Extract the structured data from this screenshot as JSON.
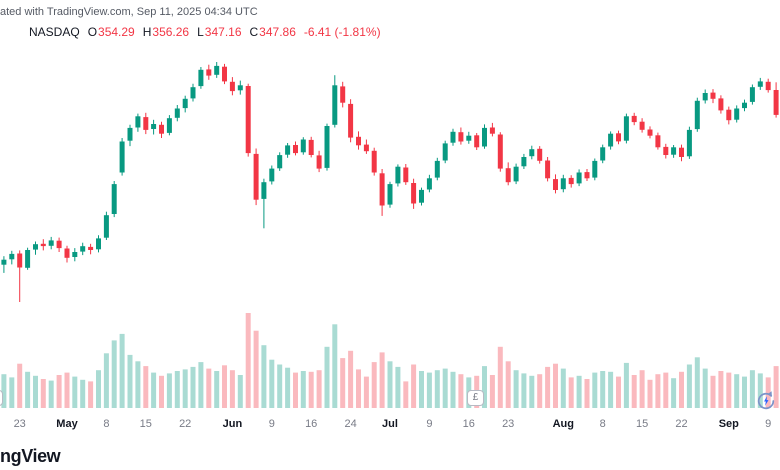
{
  "attribution": "ated with TradingView.com, Sep 11, 2025 04:34 UTC",
  "legend": {
    "symbol": "NASDAQ",
    "open_label": "O",
    "open": "354.29",
    "high_label": "H",
    "high": "356.26",
    "low_label": "L",
    "low": "347.16",
    "close_label": "C",
    "close": "347.86",
    "change": "-6.41 (-1.81%)"
  },
  "logo_text": "ngView",
  "colors": {
    "up": "#089981",
    "down": "#f23645",
    "up_volume": "#08998159",
    "down_volume": "#f2364559",
    "text_dark": "#131722",
    "text_muted": "#787b86",
    "value_down": "#f23645"
  },
  "event_badges": [
    {
      "label": "£",
      "index": 61
    },
    {
      "label": "",
      "index": 0
    }
  ],
  "chart_data": {
    "type": "candlestick",
    "symbol": "NASDAQ",
    "interval": "1D",
    "last_ohlc": {
      "open": 354.29,
      "high": 356.26,
      "low": 347.16,
      "close": 347.86,
      "change": -6.41,
      "change_pct": -1.81
    },
    "grid": "off",
    "legend_position": "top-left",
    "price_range_estimate": [
      299,
      362
    ],
    "x_axis_ticks": [
      {
        "label": "23",
        "index": 2,
        "month": false
      },
      {
        "label": "May",
        "index": 8,
        "month": true
      },
      {
        "label": "8",
        "index": 13,
        "month": false
      },
      {
        "label": "15",
        "index": 18,
        "month": false
      },
      {
        "label": "22",
        "index": 23,
        "month": false
      },
      {
        "label": "Jun",
        "index": 29,
        "month": true
      },
      {
        "label": "9",
        "index": 34,
        "month": false
      },
      {
        "label": "16",
        "index": 39,
        "month": false
      },
      {
        "label": "24",
        "index": 44,
        "month": false
      },
      {
        "label": "Jul",
        "index": 49,
        "month": true
      },
      {
        "label": "9",
        "index": 54,
        "month": false
      },
      {
        "label": "16",
        "index": 59,
        "month": false
      },
      {
        "label": "23",
        "index": 64,
        "month": false
      },
      {
        "label": "Aug",
        "index": 71,
        "month": true
      },
      {
        "label": "8",
        "index": 76,
        "month": false
      },
      {
        "label": "15",
        "index": 81,
        "month": false
      },
      {
        "label": "22",
        "index": 86,
        "month": false
      },
      {
        "label": "Sep",
        "index": 92,
        "month": true
      },
      {
        "label": "9",
        "index": 97,
        "month": false
      }
    ],
    "candle_fields": [
      "date",
      "open",
      "high",
      "low",
      "close",
      "volume"
    ],
    "candles": [
      [
        "2025-04-21",
        309.2,
        311.4,
        307.1,
        310.5,
        42
      ],
      [
        "2025-04-22",
        310.6,
        312.8,
        309.3,
        312.0,
        38
      ],
      [
        "2025-04-23",
        312.1,
        312.9,
        299.6,
        308.5,
        55
      ],
      [
        "2025-04-24",
        308.4,
        313.6,
        307.9,
        313.0,
        45
      ],
      [
        "2025-04-25",
        313.1,
        315.2,
        311.8,
        314.5,
        40
      ],
      [
        "2025-04-28",
        314.6,
        315.8,
        312.9,
        314.0,
        36
      ],
      [
        "2025-04-29",
        314.1,
        316.4,
        313.2,
        315.5,
        34
      ],
      [
        "2025-04-30",
        315.4,
        316.2,
        312.5,
        313.5,
        41
      ],
      [
        "2025-05-01",
        313.4,
        314.1,
        309.8,
        311.0,
        44
      ],
      [
        "2025-05-02",
        311.2,
        313.5,
        310.1,
        312.5,
        39
      ],
      [
        "2025-05-05",
        312.6,
        314.9,
        311.7,
        314.0,
        35
      ],
      [
        "2025-05-06",
        313.8,
        314.6,
        311.9,
        313.0,
        33
      ],
      [
        "2025-05-07",
        313.2,
        316.8,
        312.4,
        316.0,
        47
      ],
      [
        "2025-05-08",
        316.2,
        322.9,
        315.6,
        322.0,
        68
      ],
      [
        "2025-05-09",
        322.3,
        330.8,
        321.5,
        330.0,
        84
      ],
      [
        "2025-05-12",
        333.0,
        341.9,
        332.2,
        341.0,
        92
      ],
      [
        "2025-05-13",
        341.2,
        345.3,
        339.8,
        344.5,
        66
      ],
      [
        "2025-05-14",
        344.6,
        348.2,
        343.5,
        347.5,
        58
      ],
      [
        "2025-05-15",
        347.3,
        348.4,
        342.9,
        344.0,
        52
      ],
      [
        "2025-05-16",
        344.2,
        346.6,
        342.8,
        345.5,
        44
      ],
      [
        "2025-05-19",
        345.3,
        346.1,
        341.9,
        343.0,
        40
      ],
      [
        "2025-05-20",
        343.2,
        347.8,
        342.6,
        347.0,
        43
      ],
      [
        "2025-05-21",
        347.1,
        350.4,
        346.2,
        349.5,
        46
      ],
      [
        "2025-05-22",
        349.6,
        352.8,
        348.5,
        352.0,
        48
      ],
      [
        "2025-05-23",
        352.1,
        355.9,
        351.3,
        355.0,
        51
      ],
      [
        "2025-05-27",
        355.3,
        360.2,
        354.6,
        359.5,
        57
      ],
      [
        "2025-05-28",
        359.6,
        360.8,
        356.9,
        358.0,
        49
      ],
      [
        "2025-05-29",
        358.2,
        361.5,
        357.4,
        360.5,
        46
      ],
      [
        "2025-05-30",
        360.3,
        361.0,
        355.8,
        356.5,
        53
      ],
      [
        "2025-06-02",
        356.4,
        357.6,
        352.9,
        354.0,
        47
      ],
      [
        "2025-06-03",
        354.2,
        356.7,
        353.1,
        355.5,
        41
      ],
      [
        "2025-06-04",
        355.3,
        355.9,
        337.1,
        338.0,
        118
      ],
      [
        "2025-06-05",
        337.8,
        339.2,
        324.6,
        326.0,
        96
      ],
      [
        "2025-06-06",
        326.2,
        331.4,
        318.6,
        330.5,
        78
      ],
      [
        "2025-06-09",
        330.7,
        334.8,
        329.9,
        334.0,
        60
      ],
      [
        "2025-06-10",
        334.1,
        338.2,
        333.4,
        337.5,
        54
      ],
      [
        "2025-06-11",
        337.6,
        340.6,
        336.8,
        340.0,
        50
      ],
      [
        "2025-06-12",
        340.1,
        341.0,
        337.4,
        338.0,
        44
      ],
      [
        "2025-06-13",
        338.2,
        342.1,
        337.6,
        341.5,
        46
      ],
      [
        "2025-06-16",
        341.4,
        342.2,
        336.9,
        337.5,
        45
      ],
      [
        "2025-06-17",
        337.4,
        338.6,
        333.1,
        334.0,
        47
      ],
      [
        "2025-06-18",
        334.2,
        345.6,
        333.5,
        345.0,
        76
      ],
      [
        "2025-06-20",
        345.3,
        358.1,
        344.6,
        355.5,
        104
      ],
      [
        "2025-06-23",
        355.2,
        356.4,
        349.8,
        351.0,
        62
      ],
      [
        "2025-06-24",
        350.7,
        351.9,
        340.8,
        342.0,
        71
      ],
      [
        "2025-06-25",
        342.2,
        343.6,
        338.9,
        340.0,
        48
      ],
      [
        "2025-06-26",
        340.2,
        341.5,
        337.8,
        338.5,
        39
      ],
      [
        "2025-06-27",
        338.6,
        339.4,
        332.2,
        333.0,
        57
      ],
      [
        "2025-06-30",
        332.8,
        333.9,
        321.8,
        324.5,
        69
      ],
      [
        "2025-07-01",
        324.7,
        330.6,
        323.9,
        330.0,
        58
      ],
      [
        "2025-07-02",
        330.2,
        335.1,
        329.4,
        334.5,
        51
      ],
      [
        "2025-07-03",
        334.3,
        335.2,
        329.8,
        330.5,
        33
      ],
      [
        "2025-07-07",
        330.3,
        331.4,
        323.6,
        325.0,
        54
      ],
      [
        "2025-07-08",
        325.2,
        329.1,
        324.5,
        328.5,
        46
      ],
      [
        "2025-07-09",
        328.6,
        332.4,
        327.9,
        331.5,
        44
      ],
      [
        "2025-07-10",
        331.7,
        336.8,
        331.0,
        336.0,
        47
      ],
      [
        "2025-07-11",
        336.1,
        341.2,
        335.4,
        340.5,
        49
      ],
      [
        "2025-07-14",
        340.7,
        344.3,
        339.9,
        343.5,
        45
      ],
      [
        "2025-07-15",
        343.4,
        344.6,
        340.2,
        341.0,
        42
      ],
      [
        "2025-07-16",
        341.2,
        343.5,
        340.4,
        342.5,
        38
      ],
      [
        "2025-07-17",
        342.6,
        343.2,
        338.8,
        339.5,
        40
      ],
      [
        "2025-07-18",
        339.7,
        345.4,
        339.1,
        344.5,
        52
      ],
      [
        "2025-07-21",
        344.6,
        345.8,
        342.3,
        343.0,
        41
      ],
      [
        "2025-07-22",
        342.8,
        343.4,
        333.2,
        334.0,
        76
      ],
      [
        "2025-07-23",
        334.1,
        335.6,
        329.7,
        330.5,
        58
      ],
      [
        "2025-07-24",
        330.7,
        335.3,
        330.0,
        334.5,
        47
      ],
      [
        "2025-07-25",
        334.6,
        337.8,
        333.9,
        337.0,
        43
      ],
      [
        "2025-07-28",
        337.2,
        339.9,
        336.4,
        339.0,
        40
      ],
      [
        "2025-07-29",
        339.1,
        339.8,
        335.3,
        336.0,
        42
      ],
      [
        "2025-07-30",
        336.1,
        337.0,
        330.7,
        331.5,
        51
      ],
      [
        "2025-07-31",
        331.3,
        332.5,
        327.6,
        328.5,
        55
      ],
      [
        "2025-08-01",
        328.7,
        332.4,
        327.9,
        331.5,
        49
      ],
      [
        "2025-08-04",
        331.6,
        332.3,
        329.1,
        330.0,
        38
      ],
      [
        "2025-08-05",
        330.2,
        333.8,
        329.5,
        333.0,
        40
      ],
      [
        "2025-08-06",
        333.1,
        333.9,
        330.8,
        331.5,
        36
      ],
      [
        "2025-08-07",
        331.7,
        336.6,
        331.0,
        336.0,
        44
      ],
      [
        "2025-08-08",
        336.1,
        340.2,
        335.4,
        339.5,
        46
      ],
      [
        "2025-08-11",
        339.7,
        343.6,
        338.9,
        343.0,
        45
      ],
      [
        "2025-08-12",
        343.1,
        343.8,
        340.3,
        341.0,
        39
      ],
      [
        "2025-08-13",
        341.2,
        348.2,
        340.5,
        347.5,
        56
      ],
      [
        "2025-08-14",
        347.6,
        348.4,
        345.2,
        346.0,
        41
      ],
      [
        "2025-08-15",
        346.1,
        347.0,
        343.3,
        344.0,
        47
      ],
      [
        "2025-08-18",
        344.1,
        344.9,
        341.8,
        342.5,
        35
      ],
      [
        "2025-08-19",
        342.6,
        343.3,
        338.9,
        339.5,
        42
      ],
      [
        "2025-08-20",
        339.6,
        340.4,
        336.6,
        337.5,
        44
      ],
      [
        "2025-08-21",
        337.6,
        340.1,
        336.8,
        339.5,
        37
      ],
      [
        "2025-08-22",
        339.4,
        340.2,
        335.9,
        337.0,
        45
      ],
      [
        "2025-08-25",
        337.2,
        344.8,
        336.5,
        344.0,
        54
      ],
      [
        "2025-08-26",
        344.2,
        352.3,
        343.5,
        351.5,
        63
      ],
      [
        "2025-08-27",
        351.6,
        354.4,
        350.8,
        353.5,
        49
      ],
      [
        "2025-08-28",
        353.6,
        354.5,
        350.9,
        352.0,
        40
      ],
      [
        "2025-08-29",
        352.1,
        352.9,
        348.2,
        349.0,
        46
      ],
      [
        "2025-09-02",
        349.2,
        350.0,
        345.4,
        346.5,
        44
      ],
      [
        "2025-09-03",
        346.6,
        350.3,
        345.9,
        349.5,
        42
      ],
      [
        "2025-09-04",
        349.6,
        351.8,
        348.8,
        351.0,
        39
      ],
      [
        "2025-09-05",
        351.2,
        355.7,
        350.5,
        355.0,
        47
      ],
      [
        "2025-09-08",
        355.1,
        357.4,
        354.3,
        356.5,
        43
      ],
      [
        "2025-09-09",
        356.4,
        357.2,
        353.6,
        354.27,
        38
      ],
      [
        "2025-09-10",
        354.29,
        356.26,
        347.16,
        347.86,
        52
      ]
    ]
  }
}
